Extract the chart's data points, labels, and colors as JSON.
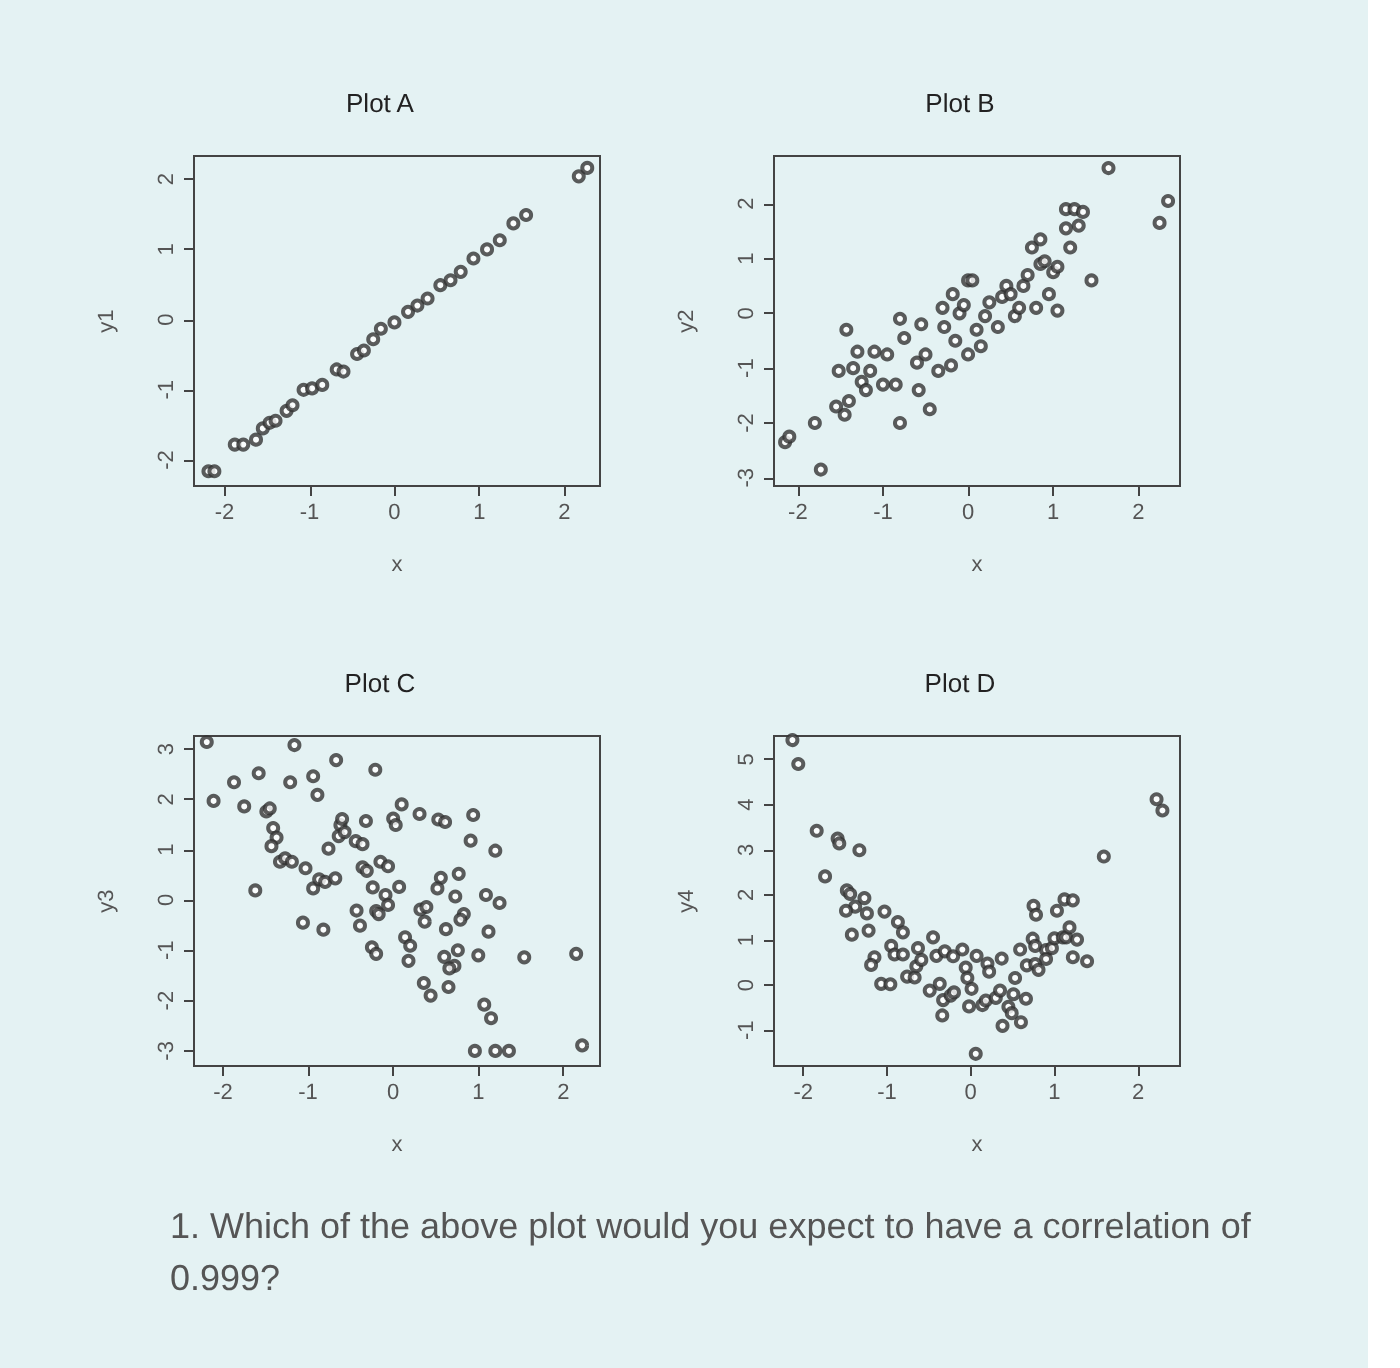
{
  "chart_data": [
    {
      "type": "scatter",
      "title": "Plot A",
      "xlabel": "x",
      "ylabel": "y1",
      "xlim": [
        -2.36,
        2.42
      ],
      "ylim": [
        -2.37,
        2.33
      ],
      "xticks": [
        -2,
        -1,
        0,
        1,
        2
      ],
      "yticks": [
        -2,
        -1,
        0,
        1,
        2
      ],
      "grid": false,
      "marker": "circle",
      "series": [
        {
          "color": "#333333",
          "x": [
            -2.19,
            -2.12,
            -1.88,
            -1.78,
            -1.63,
            -1.55,
            -1.47,
            -1.4,
            -1.27,
            -1.2,
            -1.07,
            -0.97,
            -0.85,
            -0.68,
            -0.6,
            -0.44,
            -0.36,
            -0.25,
            -0.16,
            0,
            0.16,
            0.27,
            0.39,
            0.54,
            0.66,
            0.78,
            0.93,
            1.09,
            1.24,
            1.4,
            1.55,
            2.17,
            2.27
          ],
          "values": [
            -2.16,
            -2.16,
            -1.78,
            -1.78,
            -1.71,
            -1.55,
            -1.47,
            -1.44,
            -1.3,
            -1.22,
            -1.0,
            -0.98,
            -0.93,
            -0.71,
            -0.74,
            -0.49,
            -0.44,
            -0.28,
            -0.13,
            -0.04,
            0.11,
            0.2,
            0.3,
            0.49,
            0.56,
            0.68,
            0.87,
            1.0,
            1.13,
            1.37,
            1.49,
            2.04,
            2.16
          ]
        }
      ]
    },
    {
      "type": "scatter",
      "title": "Plot B",
      "xlabel": "x",
      "ylabel": "y2",
      "xlim": [
        -2.28,
        2.49
      ],
      "ylim": [
        -3.15,
        2.87
      ],
      "xticks": [
        -2,
        -1,
        0,
        1,
        2
      ],
      "yticks": [
        -3,
        -2,
        -1,
        0,
        1,
        2
      ],
      "grid": false,
      "marker": "circle",
      "series": [
        {
          "color": "#333333",
          "x": [
            -2.15,
            -2.1,
            -1.8,
            -1.73,
            -1.55,
            -1.52,
            -1.45,
            -1.4,
            -1.43,
            -1.35,
            -1.3,
            -1.25,
            -1.2,
            -1.15,
            -1.1,
            -1.0,
            -0.95,
            -0.85,
            -0.8,
            -0.8,
            -0.75,
            -0.6,
            -0.58,
            -0.55,
            -0.5,
            -0.45,
            -0.35,
            -0.3,
            -0.28,
            -0.2,
            -0.18,
            -0.15,
            -0.1,
            -0.05,
            0,
            0,
            0.05,
            0.1,
            0.15,
            0.2,
            0.25,
            0.35,
            0.4,
            0.45,
            0.5,
            0.55,
            0.6,
            0.65,
            0.7,
            0.75,
            0.8,
            0.85,
            0.85,
            0.9,
            0.95,
            1.0,
            1.05,
            1.05,
            1.15,
            1.15,
            1.2,
            1.25,
            1.3,
            1.35,
            1.45,
            1.65,
            2.25,
            2.35
          ],
          "values": [
            -2.35,
            -2.25,
            -2.0,
            -2.85,
            -1.7,
            -1.05,
            -1.85,
            -1.6,
            -0.3,
            -1.0,
            -0.7,
            -1.25,
            -1.4,
            -1.05,
            -0.7,
            -1.3,
            -0.75,
            -1.3,
            -0.1,
            -2.0,
            -0.45,
            -0.9,
            -1.4,
            -0.2,
            -0.75,
            -1.75,
            -1.05,
            0.1,
            -0.25,
            -0.95,
            0.35,
            -0.5,
            0.0,
            0.15,
            -0.75,
            0.6,
            0.6,
            -0.3,
            -0.6,
            -0.05,
            0.2,
            -0.25,
            0.3,
            0.5,
            0.35,
            -0.05,
            0.1,
            0.5,
            0.7,
            1.2,
            0.1,
            1.35,
            0.9,
            0.95,
            0.35,
            0.75,
            0.05,
            0.85,
            1.9,
            1.55,
            1.2,
            1.9,
            1.6,
            1.85,
            0.6,
            2.65,
            1.65,
            2.05
          ]
        }
      ]
    },
    {
      "type": "scatter",
      "title": "Plot C",
      "xlabel": "x",
      "ylabel": "y3",
      "xlim": [
        -2.34,
        2.43
      ],
      "ylim": [
        -3.3,
        3.26
      ],
      "xticks": [
        -2,
        -1,
        0,
        1,
        2
      ],
      "yticks": [
        -3,
        -2,
        -1,
        0,
        1,
        2,
        3
      ],
      "grid": false,
      "marker": "circle",
      "series": [
        {
          "color": "#333333",
          "x": [
            -2.19,
            -1.16,
            -2.11,
            -1.87,
            -1.58,
            -1.75,
            -1.21,
            -0.94,
            -0.89,
            -0.67,
            -0.21,
            -1.49,
            -1.45,
            -1.41,
            -1.37,
            -1.43,
            -1.33,
            -1.27,
            -1.19,
            -1.03,
            -1.62,
            -0.94,
            -0.87,
            -0.8,
            -0.68,
            -0.76,
            -0.64,
            -0.62,
            -0.6,
            -0.57,
            -0.44,
            -0.36,
            -0.32,
            -0.36,
            -0.31,
            -0.24,
            -0.15,
            -0.06,
            0,
            0.03,
            0.1,
            0.07,
            -0.09,
            -0.06,
            -0.43,
            -0.39,
            -0.2,
            -0.17,
            -1.06,
            -0.82,
            -0.25,
            -0.2,
            0.31,
            0.53,
            0.61,
            0.94,
            0.91,
            1.2,
            0.77,
            0.56,
            0.52,
            0.73,
            1.09,
            1.25,
            0.32,
            0.39,
            0.37,
            0.83,
            0.79,
            0.62,
            1.12,
            0.14,
            0.2,
            0.18,
            0.6,
            0.76,
            0.72,
            0.66,
            1.0,
            0.36,
            0.44,
            0.65,
            1.54,
            2.15,
            1.07,
            1.15,
            0.96,
            1.2,
            1.36,
            2.22
          ],
          "values": [
            3.14,
            3.08,
            1.97,
            2.34,
            2.52,
            1.86,
            2.34,
            2.46,
            2.09,
            2.78,
            2.59,
            1.76,
            1.82,
            1.43,
            1.24,
            1.07,
            0.76,
            0.83,
            0.76,
            0.63,
            0.19,
            0.23,
            0.41,
            0.36,
            0.43,
            1.02,
            1.27,
            1.49,
            1.61,
            1.35,
            1.17,
            1.11,
            1.57,
            0.65,
            0.58,
            0.25,
            0.76,
            0.67,
            1.62,
            1.49,
            1.9,
            0.26,
            0.1,
            -0.1,
            -0.21,
            -0.51,
            -0.22,
            -0.28,
            -0.45,
            -0.59,
            -0.94,
            -1.07,
            1.71,
            1.6,
            1.55,
            1.69,
            1.18,
            0.98,
            0.52,
            0.44,
            0.23,
            0.07,
            0.1,
            -0.06,
            -0.19,
            -0.14,
            -0.43,
            -0.28,
            -0.39,
            -0.58,
            -0.63,
            -0.74,
            -0.91,
            -1.21,
            -1.13,
            -1.0,
            -1.31,
            -1.36,
            -1.1,
            -1.65,
            -1.9,
            -1.73,
            -1.14,
            -1.07,
            -2.08,
            -2.35,
            -3.0,
            -3.0,
            -3.0,
            -2.89
          ]
        }
      ]
    },
    {
      "type": "scatter",
      "title": "Plot D",
      "xlabel": "x",
      "ylabel": "y4",
      "xlim": [
        -2.35,
        2.5
      ],
      "ylim": [
        -1.79,
        5.52
      ],
      "xticks": [
        -2,
        -1,
        0,
        1,
        2
      ],
      "yticks": [
        -1,
        0,
        1,
        2,
        3,
        4,
        5
      ],
      "grid": false,
      "marker": "circle",
      "series": [
        {
          "color": "#333333",
          "x": [
            -2.13,
            -2.06,
            -1.84,
            -1.59,
            -1.57,
            -1.33,
            -1.74,
            -1.48,
            -1.44,
            -1.38,
            -1.49,
            -1.27,
            -1.24,
            -1.42,
            -1.22,
            -1.15,
            -1.19,
            -1.03,
            -0.87,
            -0.81,
            -0.95,
            -0.91,
            -0.81,
            -1.07,
            -0.96,
            -0.76,
            -0.67,
            -0.65,
            -0.59,
            -0.63,
            -0.45,
            -0.41,
            -0.31,
            -0.21,
            -0.1,
            -0.06,
            0.07,
            -0.49,
            -0.37,
            -0.33,
            -0.34,
            -0.24,
            -0.2,
            -0.04,
            0.01,
            -0.02,
            0.14,
            0.2,
            0.22,
            0.18,
            0.3,
            0.35,
            0.37,
            0.38,
            0.45,
            0.49,
            0.51,
            0.53,
            0.59,
            0.6,
            0.66,
            0.67,
            0.74,
            0.75,
            0.78,
            0.77,
            0.77,
            0.81,
            0.9,
            0.9,
            0.97,
            1.0,
            1.03,
            1.12,
            1.1,
            1.14,
            1.18,
            1.22,
            1.22,
            1.27,
            1.39,
            0.06,
            1.59,
            2.22,
            2.29
          ],
          "values": [
            5.43,
            4.9,
            3.42,
            3.25,
            3.14,
            2.99,
            2.41,
            2.1,
            2.02,
            1.74,
            1.65,
            1.93,
            1.59,
            1.12,
            1.21,
            0.62,
            0.45,
            1.63,
            1.4,
            1.17,
            0.87,
            0.68,
            0.68,
            0.03,
            0.02,
            0.19,
            0.17,
            0.42,
            0.56,
            0.82,
            1.06,
            0.65,
            0.75,
            0.64,
            0.79,
            0.39,
            0.65,
            -0.12,
            0.03,
            -0.33,
            -0.67,
            -0.23,
            -0.16,
            0.16,
            -0.08,
            -0.47,
            -0.44,
            0.48,
            0.3,
            -0.34,
            -0.28,
            -0.12,
            0.59,
            -0.9,
            -0.48,
            -0.62,
            -0.2,
            0.16,
            0.79,
            -0.82,
            -0.3,
            0.44,
            1.03,
            1.76,
            1.56,
            0.87,
            0.47,
            0.34,
            0.78,
            0.58,
            0.82,
            1.04,
            1.65,
            1.9,
            1.06,
            1.06,
            1.28,
            1.88,
            0.62,
            1.01,
            0.53,
            -1.52,
            2.85,
            4.12,
            3.87
          ]
        }
      ]
    },
    {
      "type": "other",
      "annotations": [
        "1. Which of the above plot would you expect to have a correlation of 0.999?"
      ]
    }
  ]
}
